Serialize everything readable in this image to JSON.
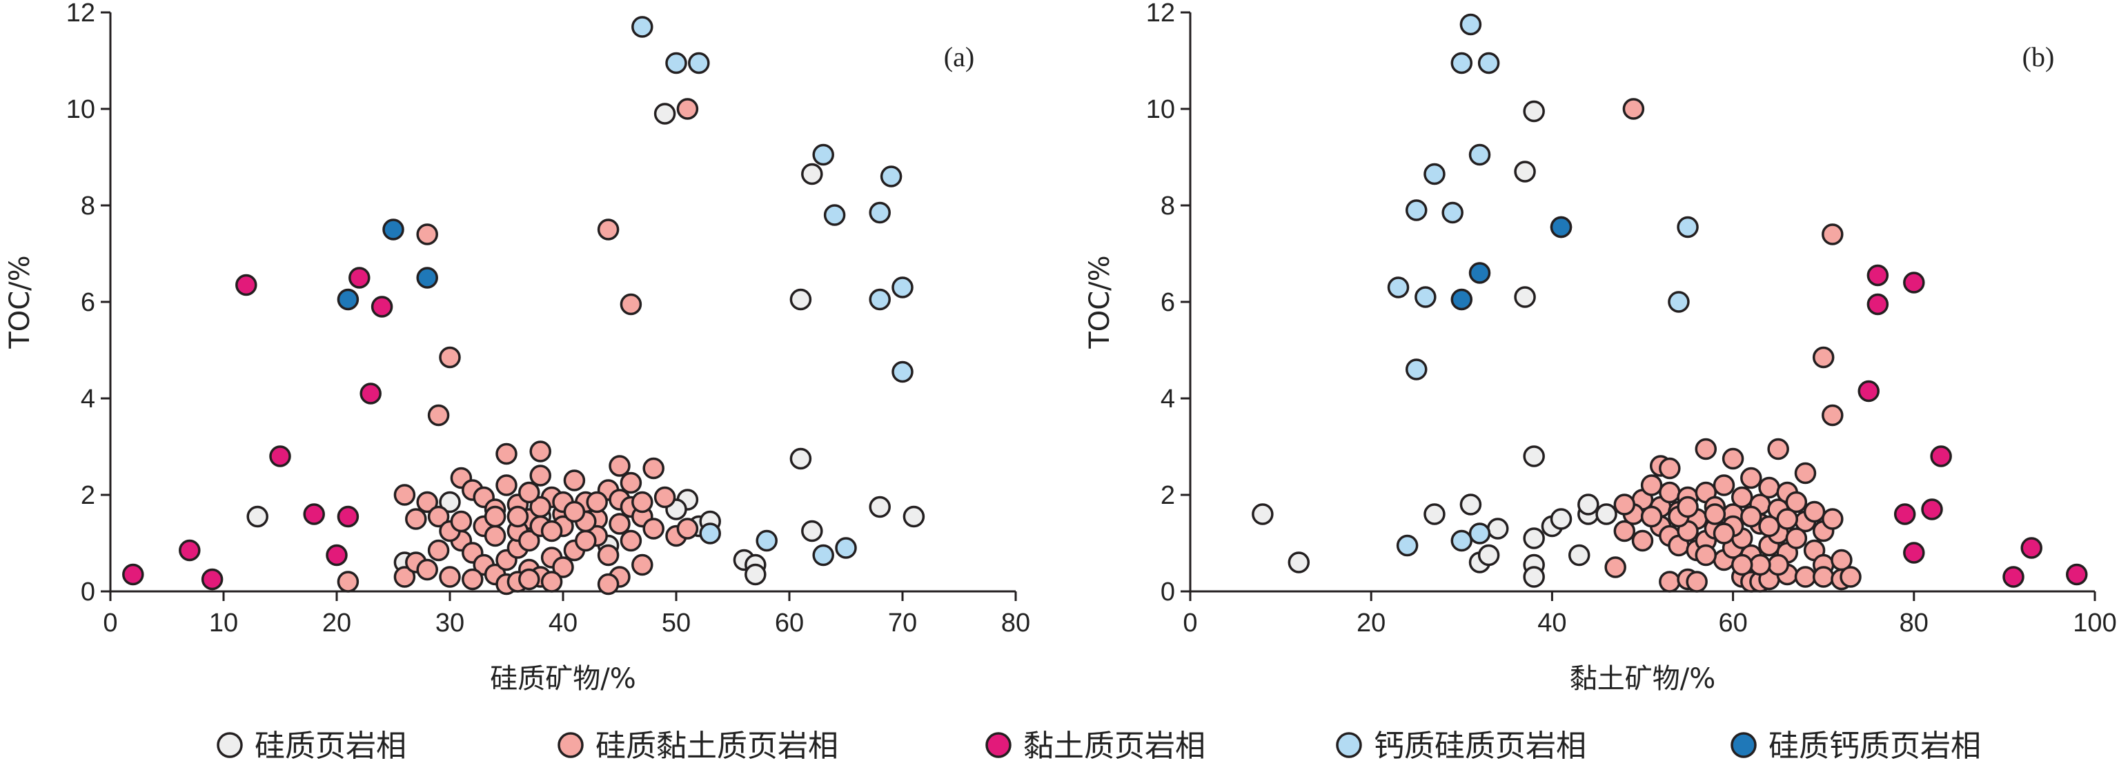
{
  "chart_data": [
    {
      "type": "scatter",
      "panel_label": "(a)",
      "xlabel": "硅质矿物/%",
      "ylabel": "TOC/%",
      "xlim": [
        0,
        80
      ],
      "ylim": [
        0,
        12
      ],
      "xticks": [
        0,
        10,
        20,
        30,
        40,
        50,
        60,
        70,
        80
      ],
      "yticks": [
        0,
        2,
        4,
        6,
        8,
        10,
        12
      ],
      "grid": false,
      "series": [
        {
          "name": "硅质页岩相",
          "points": [
            [
              13,
              1.55
            ],
            [
              49,
              9.9
            ],
            [
              62,
              8.65
            ],
            [
              61,
              6.05
            ],
            [
              61,
              2.75
            ],
            [
              62,
              1.25
            ],
            [
              68,
              1.75
            ],
            [
              71,
              1.55
            ],
            [
              51,
              1.9
            ],
            [
              50,
              1.7
            ],
            [
              52,
              1.35
            ],
            [
              53,
              1.45
            ],
            [
              56,
              0.65
            ],
            [
              57,
              0.55
            ],
            [
              57,
              0.35
            ],
            [
              26,
              0.6
            ],
            [
              47,
              1.55
            ],
            [
              38,
              1.55
            ],
            [
              30,
              1.85
            ],
            [
              44,
              0.95
            ]
          ]
        },
        {
          "name": "硅质黏土质页岩相",
          "points": [
            [
              28,
              7.4
            ],
            [
              44,
              7.5
            ],
            [
              46,
              5.95
            ],
            [
              51,
              10.0
            ],
            [
              30,
              4.85
            ],
            [
              29,
              3.65
            ],
            [
              35,
              2.85
            ],
            [
              38,
              2.9
            ],
            [
              45,
              2.6
            ],
            [
              48,
              2.55
            ],
            [
              26,
              2.0
            ],
            [
              27,
              1.5
            ],
            [
              28,
              1.85
            ],
            [
              29,
              1.55
            ],
            [
              31,
              2.35
            ],
            [
              32,
              2.1
            ],
            [
              33,
              1.95
            ],
            [
              34,
              1.7
            ],
            [
              35,
              2.2
            ],
            [
              36,
              1.8
            ],
            [
              37,
              1.5
            ],
            [
              38,
              2.4
            ],
            [
              39,
              1.95
            ],
            [
              40,
              1.6
            ],
            [
              41,
              2.3
            ],
            [
              42,
              1.85
            ],
            [
              43,
              1.5
            ],
            [
              44,
              2.1
            ],
            [
              45,
              1.9
            ],
            [
              46,
              1.75
            ],
            [
              47,
              1.55
            ],
            [
              48,
              1.3
            ],
            [
              49,
              1.95
            ],
            [
              31,
              1.05
            ],
            [
              32,
              0.8
            ],
            [
              33,
              0.55
            ],
            [
              34,
              0.35
            ],
            [
              35,
              0.65
            ],
            [
              36,
              0.9
            ],
            [
              37,
              0.45
            ],
            [
              38,
              0.3
            ],
            [
              39,
              0.7
            ],
            [
              40,
              0.5
            ],
            [
              41,
              0.85
            ],
            [
              43,
              1.15
            ],
            [
              44,
              0.75
            ],
            [
              45,
              0.3
            ],
            [
              46,
              1.05
            ],
            [
              47,
              0.55
            ],
            [
              30,
              0.3
            ],
            [
              32,
              0.25
            ],
            [
              35,
              0.15
            ],
            [
              36,
              0.2
            ],
            [
              37,
              0.25
            ],
            [
              39,
              0.2
            ],
            [
              44,
              0.15
            ],
            [
              21,
              0.2
            ],
            [
              26,
              0.3
            ],
            [
              27,
              0.6
            ],
            [
              28,
              0.45
            ],
            [
              29,
              0.85
            ],
            [
              30,
              1.25
            ],
            [
              31,
              1.45
            ],
            [
              33,
              1.35
            ],
            [
              34,
              1.15
            ],
            [
              36,
              1.25
            ],
            [
              37,
              1.05
            ],
            [
              38,
              1.75
            ],
            [
              40,
              1.35
            ],
            [
              42,
              1.05
            ],
            [
              43,
              1.85
            ],
            [
              45,
              1.4
            ],
            [
              46,
              2.25
            ],
            [
              47,
              1.85
            ],
            [
              50,
              1.15
            ],
            [
              51,
              1.3
            ],
            [
              34,
              1.55
            ],
            [
              36,
              1.55
            ],
            [
              38,
              1.35
            ],
            [
              40,
              1.85
            ],
            [
              42,
              1.45
            ],
            [
              37,
              2.05
            ],
            [
              39,
              1.25
            ],
            [
              41,
              1.65
            ]
          ]
        },
        {
          "name": "黏土质页岩相",
          "points": [
            [
              2,
              0.35
            ],
            [
              7,
              0.85
            ],
            [
              9,
              0.25
            ],
            [
              12,
              6.35
            ],
            [
              15,
              2.8
            ],
            [
              18,
              1.6
            ],
            [
              20,
              0.75
            ],
            [
              21,
              1.55
            ],
            [
              22,
              6.5
            ],
            [
              23,
              4.1
            ],
            [
              24,
              5.9
            ]
          ]
        },
        {
          "name": "钙质硅质页岩相",
          "points": [
            [
              47,
              11.7
            ],
            [
              50,
              10.95
            ],
            [
              52,
              10.95
            ],
            [
              63,
              9.05
            ],
            [
              64,
              7.8
            ],
            [
              68,
              7.85
            ],
            [
              69,
              8.6
            ],
            [
              68,
              6.05
            ],
            [
              70,
              6.3
            ],
            [
              70,
              4.55
            ],
            [
              53,
              1.2
            ],
            [
              58,
              1.05
            ],
            [
              63,
              0.75
            ],
            [
              65,
              0.9
            ]
          ]
        },
        {
          "name": "硅质钙质页岩相",
          "points": [
            [
              25,
              7.5
            ],
            [
              28,
              6.5
            ],
            [
              21,
              6.05
            ]
          ]
        }
      ]
    },
    {
      "type": "scatter",
      "panel_label": "(b)",
      "xlabel": "黏土矿物/%",
      "ylabel": "TOC/%",
      "xlim": [
        0,
        100
      ],
      "ylim": [
        0,
        12
      ],
      "xticks": [
        0,
        20,
        40,
        60,
        80,
        100
      ],
      "yticks": [
        0,
        2,
        4,
        6,
        8,
        10,
        12
      ],
      "grid": false,
      "series": [
        {
          "name": "硅质页岩相",
          "points": [
            [
              8,
              1.6
            ],
            [
              12,
              0.6
            ],
            [
              27,
              1.6
            ],
            [
              31,
              1.8
            ],
            [
              32,
              0.6
            ],
            [
              33,
              0.75
            ],
            [
              34,
              1.3
            ],
            [
              37,
              8.7
            ],
            [
              37,
              6.1
            ],
            [
              38,
              9.95
            ],
            [
              38,
              2.8
            ],
            [
              38,
              0.55
            ],
            [
              38,
              0.3
            ],
            [
              38,
              1.1
            ],
            [
              40,
              1.35
            ],
            [
              41,
              1.5
            ],
            [
              43,
              0.75
            ],
            [
              44,
              1.6
            ],
            [
              44,
              1.8
            ],
            [
              46,
              1.6
            ]
          ]
        },
        {
          "name": "硅质黏土质页岩相",
          "points": [
            [
              49,
              10.0
            ],
            [
              71,
              7.4
            ],
            [
              70,
              4.85
            ],
            [
              71,
              3.65
            ],
            [
              57,
              2.95
            ],
            [
              65,
              2.95
            ],
            [
              60,
              2.75
            ],
            [
              68,
              2.45
            ],
            [
              52,
              2.6
            ],
            [
              53,
              2.55
            ],
            [
              50,
              1.9
            ],
            [
              51,
              2.2
            ],
            [
              52,
              1.75
            ],
            [
              53,
              2.05
            ],
            [
              54,
              1.65
            ],
            [
              55,
              1.95
            ],
            [
              56,
              1.5
            ],
            [
              57,
              2.05
            ],
            [
              58,
              1.75
            ],
            [
              59,
              2.2
            ],
            [
              60,
              1.6
            ],
            [
              61,
              1.95
            ],
            [
              62,
              2.35
            ],
            [
              63,
              1.8
            ],
            [
              64,
              2.15
            ],
            [
              65,
              1.7
            ],
            [
              66,
              2.05
            ],
            [
              67,
              1.85
            ],
            [
              68,
              1.45
            ],
            [
              69,
              1.65
            ],
            [
              70,
              1.25
            ],
            [
              71,
              1.5
            ],
            [
              48,
              1.25
            ],
            [
              49,
              1.6
            ],
            [
              50,
              1.05
            ],
            [
              52,
              1.35
            ],
            [
              53,
              1.15
            ],
            [
              54,
              0.95
            ],
            [
              55,
              1.25
            ],
            [
              56,
              0.85
            ],
            [
              57,
              1.05
            ],
            [
              58,
              1.3
            ],
            [
              59,
              0.65
            ],
            [
              60,
              0.9
            ],
            [
              61,
              1.1
            ],
            [
              62,
              0.75
            ],
            [
              63,
              1.4
            ],
            [
              64,
              0.95
            ],
            [
              65,
              1.2
            ],
            [
              66,
              0.8
            ],
            [
              67,
              1.1
            ],
            [
              69,
              0.85
            ],
            [
              70,
              0.55
            ],
            [
              72,
              0.65
            ],
            [
              47,
              0.5
            ],
            [
              53,
              0.2
            ],
            [
              55,
              0.25
            ],
            [
              56,
              0.2
            ],
            [
              61,
              0.3
            ],
            [
              62,
              0.2
            ],
            [
              63,
              0.2
            ],
            [
              64,
              0.25
            ],
            [
              66,
              0.35
            ],
            [
              68,
              0.3
            ],
            [
              70,
              0.3
            ],
            [
              72,
              0.25
            ],
            [
              73,
              0.3
            ],
            [
              54,
              1.55
            ],
            [
              58,
              1.6
            ],
            [
              62,
              1.55
            ],
            [
              66,
              1.5
            ],
            [
              60,
              1.35
            ],
            [
              64,
              1.35
            ],
            [
              55,
              1.75
            ],
            [
              59,
              1.2
            ],
            [
              65,
              0.55
            ],
            [
              63,
              0.55
            ],
            [
              57,
              0.75
            ],
            [
              61,
              0.55
            ],
            [
              51,
              1.55
            ],
            [
              48,
              1.8
            ]
          ]
        },
        {
          "name": "黏土质页岩相",
          "points": [
            [
              41,
              7.55
            ],
            [
              75,
              4.15
            ],
            [
              76,
              6.55
            ],
            [
              76,
              5.95
            ],
            [
              80,
              6.4
            ],
            [
              83,
              2.8
            ],
            [
              79,
              1.6
            ],
            [
              82,
              1.7
            ],
            [
              80,
              0.8
            ],
            [
              91,
              0.3
            ],
            [
              93,
              0.9
            ],
            [
              98,
              0.35
            ]
          ]
        },
        {
          "name": "钙质硅质页岩相",
          "points": [
            [
              31,
              11.75
            ],
            [
              30,
              10.95
            ],
            [
              33,
              10.95
            ],
            [
              32,
              9.05
            ],
            [
              27,
              8.65
            ],
            [
              25,
              7.9
            ],
            [
              29,
              7.85
            ],
            [
              23,
              6.3
            ],
            [
              26,
              6.1
            ],
            [
              25,
              4.6
            ],
            [
              55,
              7.55
            ],
            [
              54,
              6.0
            ],
            [
              24,
              0.95
            ],
            [
              30,
              1.05
            ],
            [
              32,
              1.2
            ]
          ]
        },
        {
          "name": "硅质钙质页岩相",
          "points": [
            [
              30,
              6.05
            ],
            [
              32,
              6.6
            ],
            [
              41,
              7.55
            ]
          ]
        }
      ]
    }
  ],
  "series_colors": {
    "硅质页岩相": "#eeeeee",
    "硅质黏土质页岩相": "#f5a7a2",
    "黏土质页岩相": "#e21a7a",
    "钙质硅质页岩相": "#b3dbf3",
    "硅质钙质页岩相": "#1f78b8"
  },
  "legend": {
    "placement": "bottom",
    "items": [
      "硅质页岩相",
      "硅质黏土质页岩相",
      "黏土质页岩相",
      "钙质硅质页岩相",
      "硅质钙质页岩相"
    ]
  }
}
